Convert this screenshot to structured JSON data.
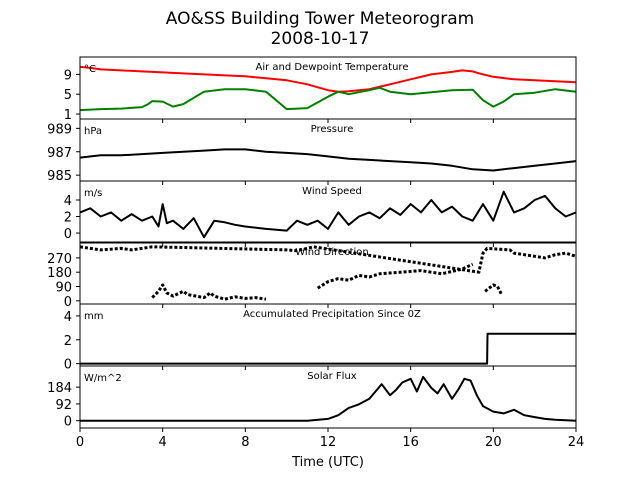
{
  "title": "AO&SS Building Tower Meteorogram",
  "subtitle": "2008-10-17",
  "chart_data": {
    "type": "line",
    "xlabel": "Time (UTC)",
    "xlim": [
      0,
      24
    ],
    "xticks": [
      0,
      4,
      8,
      12,
      16,
      20,
      24
    ],
    "panels": [
      {
        "id": "temperature",
        "title": "Air and Dewpoint Temperature",
        "unit": "°C",
        "ylim": [
          0,
          12.5
        ],
        "yticks": [
          1,
          5,
          9
        ],
        "series": [
          {
            "color": "#ff0000",
            "x": [
              0,
              0.5,
              1,
              2,
              3,
              4,
              5,
              6,
              7,
              8,
              9,
              10,
              11,
              12,
              12.5,
              13,
              14,
              15,
              16,
              17,
              18,
              18.5,
              19,
              19.5,
              20,
              21,
              22,
              23,
              24
            ],
            "y": [
              10.5,
              10.3,
              10,
              9.8,
              9.6,
              9.4,
              9.2,
              9,
              8.8,
              8.6,
              8.2,
              7.8,
              7,
              5.8,
              5.5,
              5.6,
              6,
              7,
              8,
              9,
              9.5,
              9.8,
              9.6,
              9,
              8.5,
              8,
              7.8,
              7.6,
              7.4
            ]
          },
          {
            "color": "#008000",
            "x": [
              0,
              1,
              2,
              3,
              3.3,
              3.5,
              4,
              4.5,
              5,
              6,
              7,
              8,
              9,
              10,
              11,
              12,
              12.5,
              13,
              14,
              14.5,
              15,
              16,
              17,
              18,
              19,
              19.5,
              20,
              20.5,
              21,
              22,
              23,
              24
            ],
            "y": [
              1.8,
              2,
              2.1,
              2.4,
              3,
              3.6,
              3.5,
              2.5,
              3,
              5.5,
              6,
              6,
              5.5,
              2,
              2.2,
              4.5,
              5.5,
              5,
              5.8,
              6.3,
              5.5,
              5,
              5.4,
              5.8,
              5.9,
              3.8,
              2.5,
              3.5,
              5,
              5.3,
              6,
              5.5
            ]
          }
        ]
      },
      {
        "id": "pressure",
        "title": "Pressure",
        "unit": "hPa",
        "ylim": [
          984.5,
          989.8
        ],
        "yticks": [
          985,
          987,
          989
        ],
        "series": [
          {
            "color": "#000000",
            "x": [
              0,
              1,
              2,
              3,
              4,
              5,
              6,
              7,
              8,
              9,
              10,
              11,
              12,
              13,
              14,
              15,
              16,
              17,
              18,
              19,
              20,
              21,
              22,
              23,
              24
            ],
            "y": [
              986.5,
              986.7,
              986.7,
              986.8,
              986.9,
              987,
              987.1,
              987.2,
              987.2,
              987,
              986.9,
              986.8,
              986.6,
              986.4,
              986.3,
              986.2,
              986.1,
              986,
              985.8,
              985.5,
              985.4,
              985.6,
              985.8,
              986,
              986.2
            ]
          }
        ]
      },
      {
        "id": "wind-speed",
        "title": "Wind Speed",
        "unit": "m/s",
        "ylim": [
          -1.2,
          6.3
        ],
        "yticks": [
          0,
          2,
          4
        ],
        "series": [
          {
            "color": "#000000",
            "x": [
              0,
              0.5,
              1,
              1.5,
              2,
              2.5,
              3,
              3.5,
              3.8,
              4,
              4.2,
              4.5,
              5,
              5.5,
              6,
              6.5,
              7,
              7.5,
              8,
              9,
              10,
              10.5,
              11,
              11.5,
              12,
              12.5,
              13,
              13.5,
              14,
              14.5,
              15,
              15.5,
              16,
              16.5,
              17,
              17.5,
              18,
              18.5,
              19,
              19.5,
              20,
              20.5,
              21,
              21.5,
              22,
              22.5,
              23,
              23.5,
              24
            ],
            "y": [
              2.5,
              3,
              2,
              2.5,
              1.5,
              2.3,
              1.5,
              2,
              0.8,
              3.5,
              1.2,
              1.5,
              0.5,
              1.8,
              -0.5,
              1.5,
              1.3,
              1,
              0.8,
              0.5,
              0.3,
              1.5,
              1,
              1.5,
              0.5,
              2.5,
              1,
              2,
              2.5,
              1.8,
              3,
              2.2,
              3.5,
              2.5,
              4,
              2.5,
              3.2,
              2,
              1.5,
              3.5,
              1.5,
              5,
              2.5,
              3,
              4,
              4.5,
              3,
              2,
              2.5
            ]
          }
        ]
      },
      {
        "id": "wind-direction",
        "title": "Wind Direction",
        "unit": "",
        "ylim": [
          -20,
          370
        ],
        "yticks": [
          0,
          90,
          180,
          270
        ],
        "series": [
          {
            "color": "#000000",
            "x": [
              0,
              0.5,
              1,
              1.5,
              2,
              2.5,
              3,
              3.5,
              10,
              10.5,
              11,
              11.3,
              19.3,
              19.5,
              19.7,
              20.8,
              21,
              21.5,
              22,
              22.5,
              23,
              23.5,
              24
            ],
            "y": [
              340,
              330,
              320,
              325,
              330,
              320,
              330,
              340,
              320,
              315,
              330,
              340,
              180,
              300,
              330,
              320,
              300,
              290,
              280,
              270,
              290,
              300,
              280
            ]
          },
          {
            "color": "#000000",
            "x": [
              3.5,
              3.8,
              4,
              4.2,
              4.5,
              5,
              5.2,
              6,
              6.3,
              6.5,
              7,
              7.5,
              8,
              8.5,
              9
            ],
            "y": [
              20,
              60,
              100,
              50,
              30,
              60,
              40,
              20,
              50,
              30,
              10,
              25,
              15,
              20,
              10
            ]
          },
          {
            "color": "#000000",
            "x": [
              11.5,
              12,
              12.5,
              13,
              13.5,
              14,
              14.5,
              15,
              15.5,
              16,
              16.5,
              17,
              17.5,
              18,
              18.5,
              19
            ],
            "y": [
              80,
              120,
              140,
              130,
              160,
              150,
              170,
              175,
              180,
              185,
              190,
              180,
              170,
              185,
              200,
              230
            ]
          },
          {
            "color": "#000000",
            "x": [
              19.6,
              19.8,
              20,
              20.2,
              20.4
            ],
            "y": [
              60,
              80,
              100,
              90,
              40
            ]
          }
        ]
      },
      {
        "id": "precipitation",
        "title": "Accumulated Precipitation Since 0Z",
        "unit": "mm",
        "ylim": [
          -0.2,
          5
        ],
        "yticks": [
          0,
          2,
          4
        ],
        "series": [
          {
            "color": "#000000",
            "x": [
              0,
              19.7,
              19.72,
              24
            ],
            "y": [
              0,
              0,
              2.5,
              2.5
            ]
          }
        ]
      },
      {
        "id": "solar-flux",
        "title": "Solar Flux",
        "unit": "W/m^2",
        "ylim": [
          -40,
          300
        ],
        "yticks": [
          0,
          92,
          184
        ],
        "series": [
          {
            "color": "#000000",
            "x": [
              0,
              11,
              12,
              12.5,
              13,
              13.5,
              14,
              14.3,
              14.6,
              15,
              15.3,
              15.6,
              16,
              16.3,
              16.6,
              17,
              17.3,
              17.6,
              18,
              18.3,
              18.6,
              18.9,
              19.2,
              19.5,
              20,
              20.5,
              21,
              21.5,
              22,
              22.5,
              23,
              24
            ],
            "y": [
              0,
              0,
              10,
              30,
              70,
              90,
              120,
              160,
              200,
              140,
              170,
              210,
              230,
              160,
              240,
              180,
              150,
              200,
              120,
              170,
              230,
              220,
              140,
              80,
              50,
              40,
              60,
              30,
              20,
              10,
              5,
              0
            ]
          }
        ]
      }
    ]
  }
}
